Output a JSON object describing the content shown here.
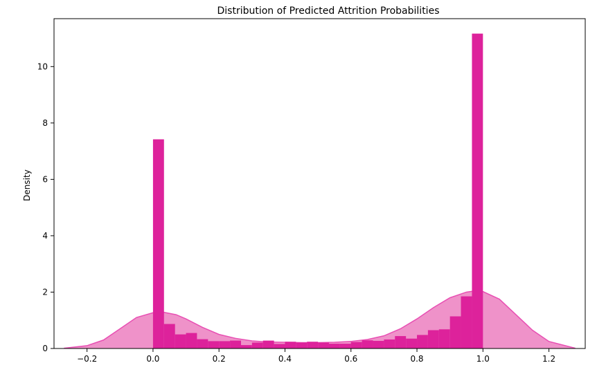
{
  "chart_data": {
    "type": "histogram",
    "title": "Distribution of Predicted Attrition Probabilities",
    "xlabel": "",
    "ylabel": "Density",
    "xlim": [
      -0.3,
      1.31
    ],
    "ylim": [
      0,
      11.7
    ],
    "xticks": [
      -0.2,
      0.0,
      0.2,
      0.4,
      0.6,
      0.8,
      1.0,
      1.2
    ],
    "xtick_labels": [
      "−0.2",
      "0.0",
      "0.2",
      "0.4",
      "0.6",
      "0.8",
      "1.0",
      "1.2"
    ],
    "yticks": [
      0,
      2,
      4,
      6,
      8,
      10
    ],
    "ytick_labels": [
      "0",
      "2",
      "4",
      "6",
      "8",
      "10"
    ],
    "grid": false,
    "colors": {
      "bar": "#dd229b",
      "kde_line": "#e84fb3",
      "kde_fill": "#ef92c9"
    },
    "bins": {
      "edges": [
        0.0,
        0.0333,
        0.0667,
        0.1,
        0.1333,
        0.1667,
        0.2,
        0.2333,
        0.2667,
        0.3,
        0.3333,
        0.3667,
        0.4,
        0.4333,
        0.4667,
        0.5,
        0.5333,
        0.5667,
        0.6,
        0.6333,
        0.6667,
        0.7,
        0.7333,
        0.7667,
        0.8,
        0.8333,
        0.8667,
        0.9,
        0.9333,
        0.9667,
        1.0
      ],
      "values": [
        7.42,
        0.87,
        0.5,
        0.55,
        0.33,
        0.26,
        0.26,
        0.28,
        0.12,
        0.21,
        0.28,
        0.16,
        0.24,
        0.21,
        0.24,
        0.21,
        0.17,
        0.17,
        0.23,
        0.29,
        0.27,
        0.32,
        0.44,
        0.35,
        0.48,
        0.65,
        0.68,
        1.14,
        1.85,
        11.17
      ]
    },
    "kde": {
      "x": [
        -0.27,
        -0.2,
        -0.15,
        -0.1,
        -0.05,
        0.0,
        0.03,
        0.07,
        0.1,
        0.15,
        0.2,
        0.25,
        0.3,
        0.35,
        0.4,
        0.45,
        0.5,
        0.55,
        0.6,
        0.65,
        0.7,
        0.75,
        0.8,
        0.85,
        0.9,
        0.95,
        0.98,
        1.0,
        1.05,
        1.1,
        1.15,
        1.2,
        1.28
      ],
      "y": [
        0.01,
        0.1,
        0.3,
        0.7,
        1.1,
        1.27,
        1.29,
        1.2,
        1.05,
        0.75,
        0.5,
        0.36,
        0.27,
        0.23,
        0.22,
        0.21,
        0.21,
        0.22,
        0.25,
        0.32,
        0.45,
        0.7,
        1.05,
        1.45,
        1.8,
        2.0,
        2.05,
        2.02,
        1.75,
        1.2,
        0.65,
        0.25,
        0.01
      ]
    }
  }
}
